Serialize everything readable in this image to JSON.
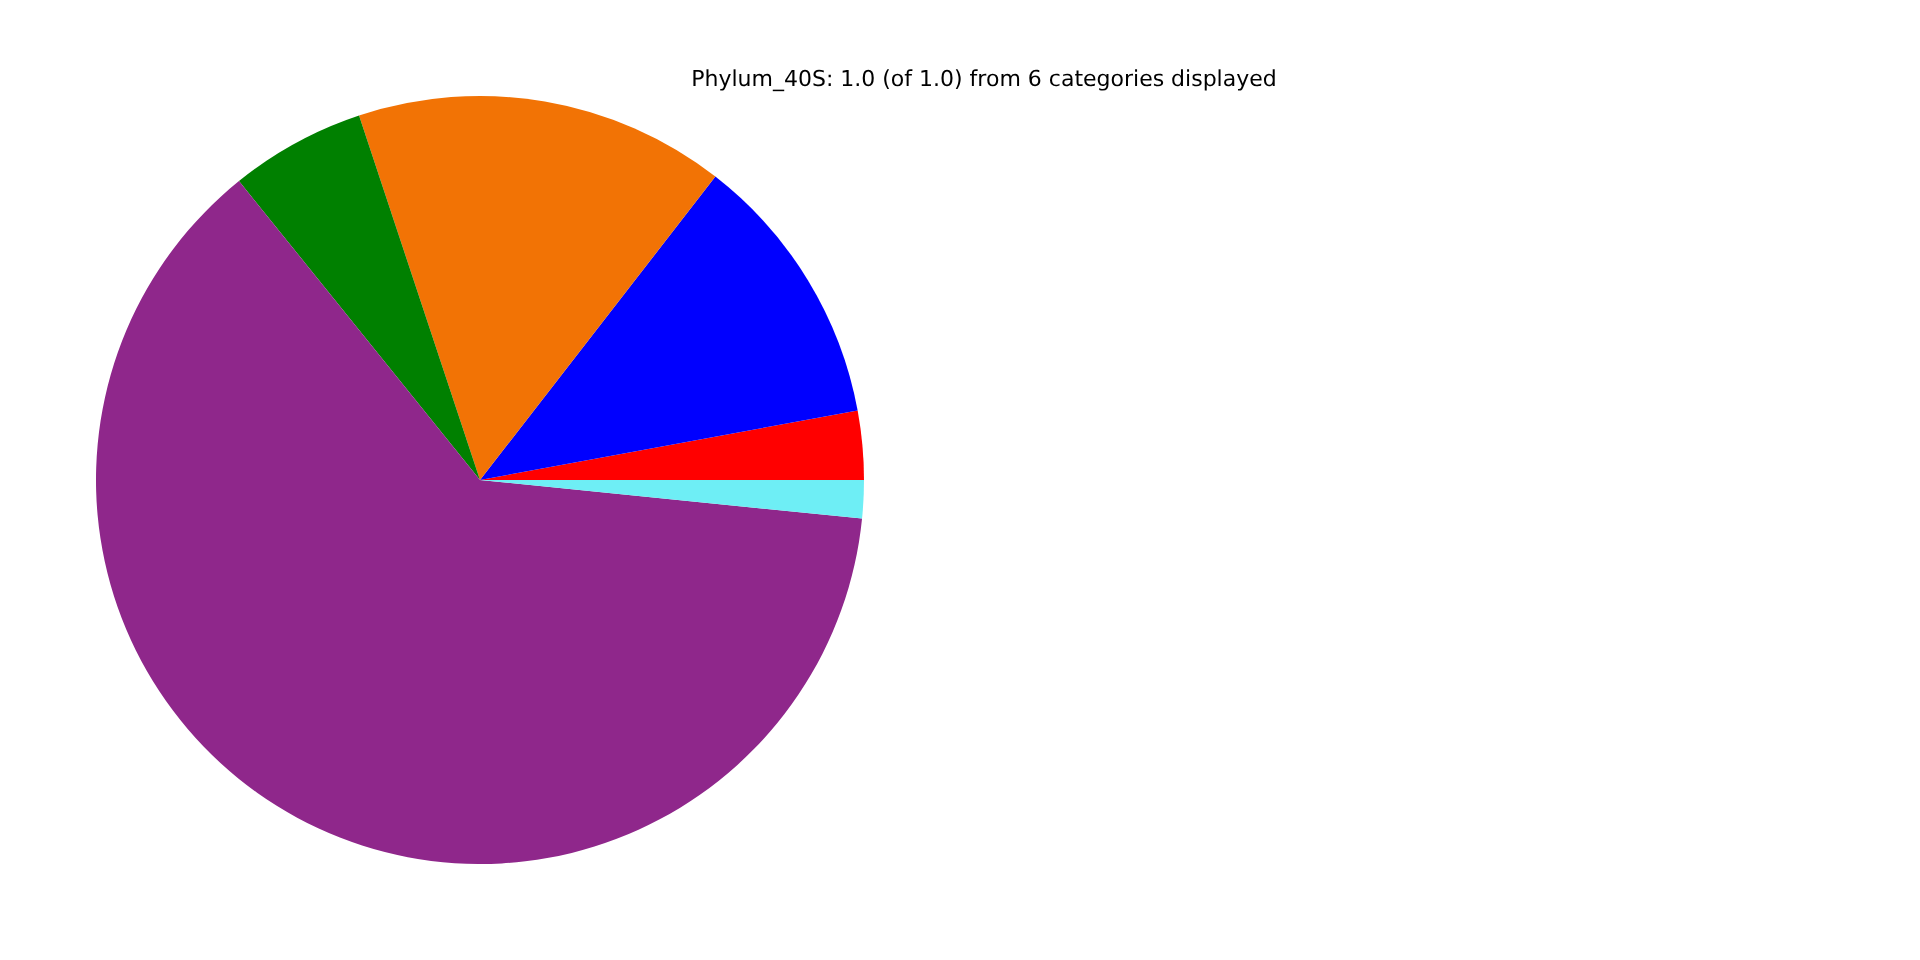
{
  "chart_data": {
    "type": "pie",
    "title": "Phylum_40S: 1.0 (of 1.0) from 6 categories displayed",
    "categories": [
      null,
      null,
      null,
      null,
      null,
      null
    ],
    "values": [
      2.9,
      11.6,
      15.6,
      5.7,
      62.6,
      1.6
    ],
    "colors": [
      "#ff0000",
      "#0000ff",
      "#f27305",
      "#008000",
      "#8f278b",
      "#6eeef5"
    ]
  }
}
